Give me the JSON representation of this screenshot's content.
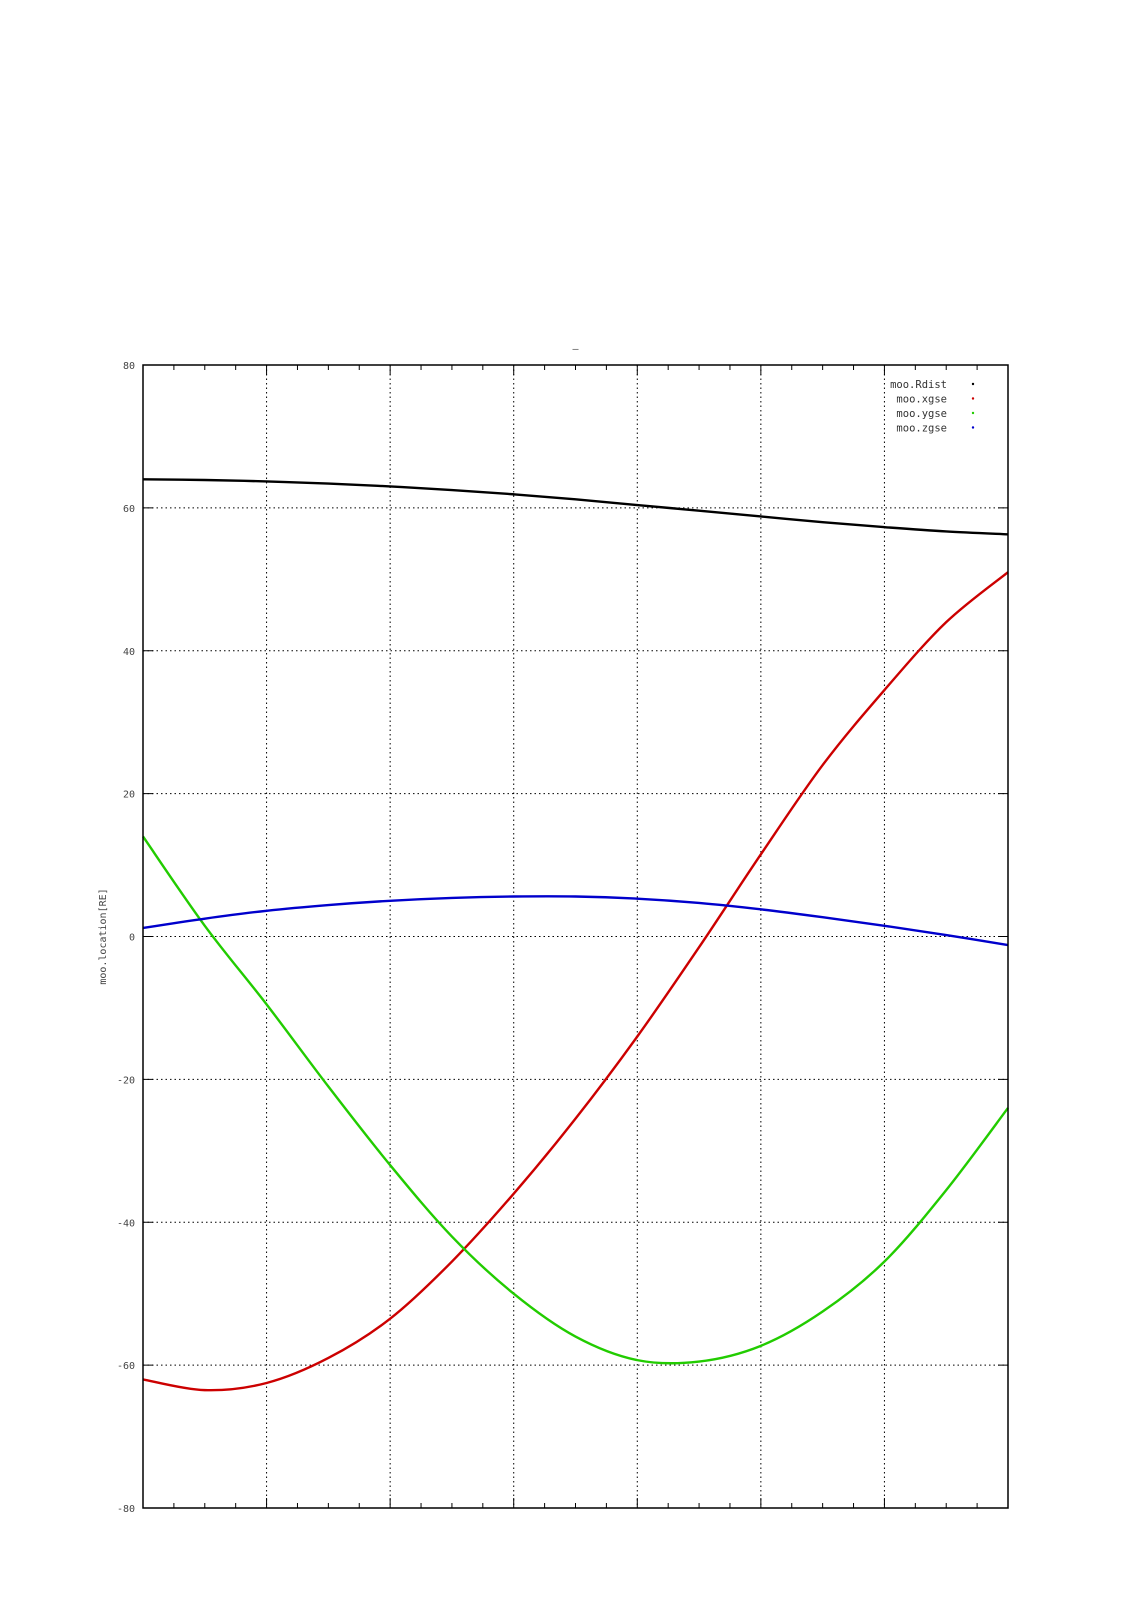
{
  "chart_data": {
    "type": "line",
    "title": "–",
    "xlabel": "",
    "ylabel": "moo.location[RE]",
    "ylim": [
      -80,
      80
    ],
    "yticks": [
      80,
      60,
      40,
      20,
      0,
      -20,
      -40,
      -60,
      -80
    ],
    "xlim": [
      0,
      7
    ],
    "grid": true,
    "legend_position": "top-right",
    "series": [
      {
        "name": "moo.Rdist",
        "color": "#000000",
        "x": [
          0,
          0.5,
          1,
          1.5,
          2,
          2.5,
          3,
          3.5,
          4,
          4.5,
          5,
          5.5,
          6,
          6.5,
          7
        ],
        "y": [
          64,
          63.9,
          63.7,
          63.4,
          63.0,
          62.5,
          61.9,
          61.2,
          60.4,
          59.6,
          58.8,
          58.0,
          57.3,
          56.7,
          56.3
        ]
      },
      {
        "name": "moo.xgse",
        "color": "#cc0000",
        "x": [
          0,
          0.5,
          1,
          1.5,
          2,
          2.5,
          3,
          3.5,
          4,
          4.5,
          5,
          5.5,
          6,
          6.5,
          7
        ],
        "y": [
          -62,
          -63.5,
          -62.5,
          -59,
          -53.5,
          -45.5,
          -36,
          -25.5,
          -14,
          -1.5,
          11.5,
          24,
          34.5,
          44,
          51
        ]
      },
      {
        "name": "moo.ygse",
        "color": "#22cc00",
        "x": [
          0,
          0.5,
          1,
          1.5,
          2,
          2.5,
          3,
          3.5,
          4,
          4.5,
          5,
          5.5,
          6,
          6.5,
          7
        ],
        "y": [
          14,
          1.5,
          -9.5,
          -21,
          -32,
          -42,
          -50,
          -56,
          -59.3,
          -59.5,
          -57.3,
          -52.5,
          -45.5,
          -35.5,
          -24
        ]
      },
      {
        "name": "moo.zgse",
        "color": "#0000cc",
        "x": [
          0,
          0.5,
          1,
          1.5,
          2,
          2.5,
          3,
          3.5,
          4,
          4.5,
          5,
          5.5,
          6,
          6.5,
          7
        ],
        "y": [
          1.2,
          2.5,
          3.6,
          4.4,
          5.0,
          5.4,
          5.6,
          5.6,
          5.3,
          4.7,
          3.8,
          2.7,
          1.5,
          0.2,
          -1.2
        ]
      }
    ]
  }
}
